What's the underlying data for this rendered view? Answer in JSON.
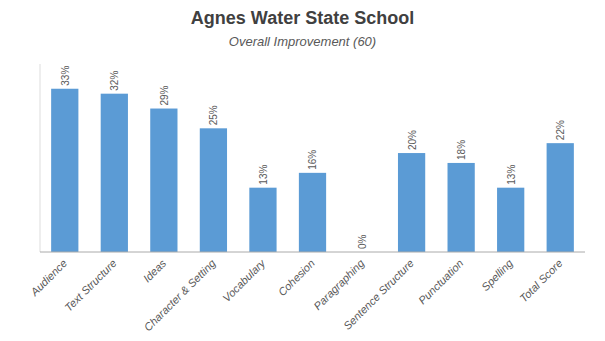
{
  "chart_data": {
    "type": "bar",
    "title": "Agnes Water State School",
    "subtitle": "Overall Improvement (60)",
    "categories": [
      "Audience",
      "Text Structure",
      "Ideas",
      "Character & Setting",
      "Vocabulary",
      "Cohesion",
      "Paragraphing",
      "Sentence Structure",
      "Punctuation",
      "Spelling",
      "Total Score"
    ],
    "values": [
      33,
      32,
      29,
      25,
      13,
      16,
      0,
      20,
      18,
      13,
      22
    ],
    "value_labels": [
      "33%",
      "32%",
      "29%",
      "25%",
      "13%",
      "16%",
      "0%",
      "20%",
      "18%",
      "13%",
      "22%"
    ],
    "color": "#5b9bd5",
    "ylim": [
      0,
      38
    ],
    "yticks": [],
    "grid": false,
    "data_labels": true,
    "tick_labels": "x"
  }
}
